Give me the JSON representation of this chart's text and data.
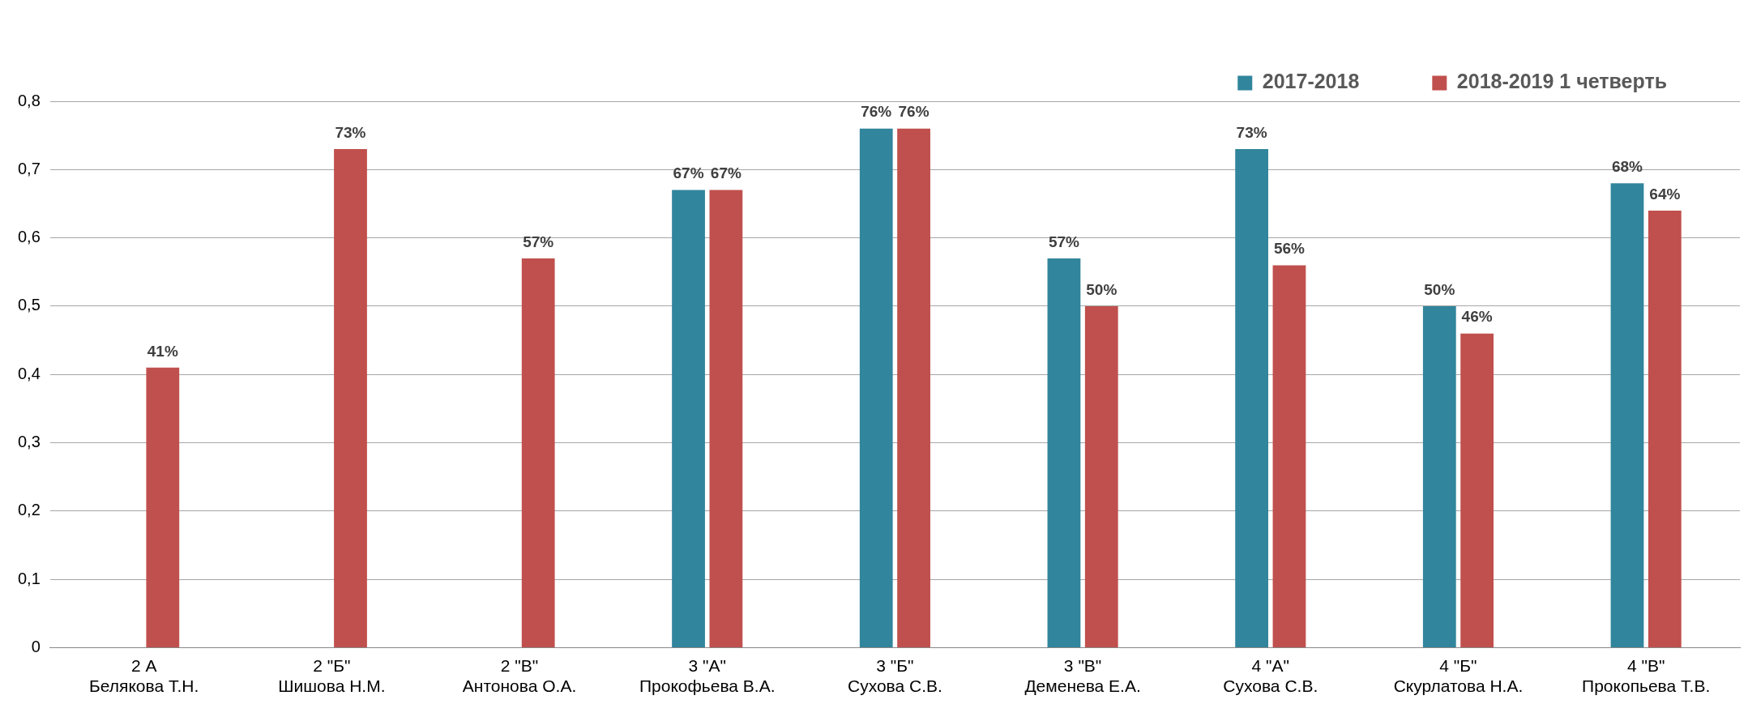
{
  "chart_data": {
    "type": "bar",
    "categories": [
      "2 А\nБелякова Т.Н.",
      "2 \"Б\"\nШишова Н.М.",
      "2 \"В\"\nАнтонова О.А.",
      "3 \"А\"\nПрокофьева В.А.",
      "3 \"Б\"\nСухова С.В.",
      "3 \"В\"\nДеменева Е.А.",
      "4 \"А\"\nСухова С.В.",
      "4 \"Б\"\nСкурлатова Н.А.",
      "4 \"В\"\nПрокопьева Т.В."
    ],
    "series": [
      {
        "name": "2017-2018",
        "color": "#31859c",
        "values": [
          null,
          null,
          null,
          0.67,
          0.76,
          0.57,
          0.73,
          0.5,
          0.68
        ],
        "value_labels": [
          null,
          null,
          null,
          "67%",
          "76%",
          "57%",
          "73%",
          "50%",
          "68%"
        ]
      },
      {
        "name": "2018-2019 1 четверть",
        "color": "#c0504d",
        "values": [
          0.41,
          0.73,
          0.57,
          0.67,
          0.76,
          0.5,
          0.56,
          0.46,
          0.64
        ],
        "value_labels": [
          "41%",
          "73%",
          "57%",
          "67%",
          "76%",
          "50%",
          "56%",
          "46%",
          "64%"
        ]
      }
    ],
    "ylim": [
      0,
      0.8
    ],
    "yticks": [
      {
        "value": 0,
        "label": "0"
      },
      {
        "value": 0.1,
        "label": "0,1"
      },
      {
        "value": 0.2,
        "label": "0,2"
      },
      {
        "value": 0.3,
        "label": "0,3"
      },
      {
        "value": 0.4,
        "label": "0,4"
      },
      {
        "value": 0.5,
        "label": "0,5"
      },
      {
        "value": 0.6,
        "label": "0,6"
      },
      {
        "value": 0.7,
        "label": "0,7"
      },
      {
        "value": 0.8,
        "label": "0,8"
      }
    ],
    "grid": "y",
    "legend": "top right"
  }
}
